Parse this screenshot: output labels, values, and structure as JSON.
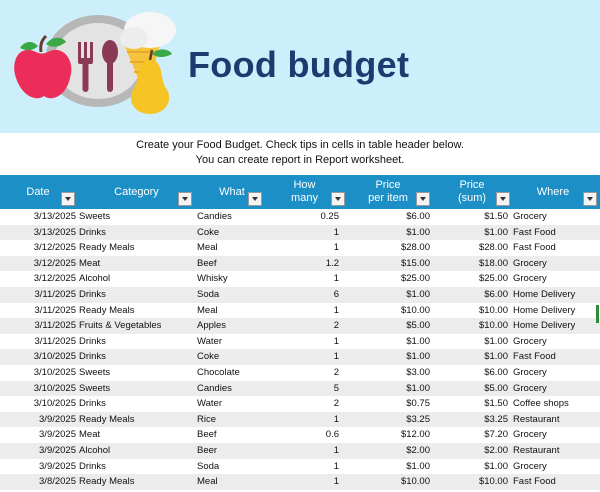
{
  "banner": {
    "title": "Food budget"
  },
  "intro": {
    "line1": "Create your Food Budget. Check tips in cells in table header below.",
    "line2": "You can create report in Report worksheet."
  },
  "table": {
    "headers": {
      "date": "Date",
      "category": "Category",
      "what": "What",
      "how_many_1": "How",
      "how_many_2": "many",
      "price_1": "Price",
      "price_2": "per item",
      "sum_1": "Price",
      "sum_2": "(sum)",
      "where": "Where"
    },
    "rows": [
      {
        "date": "3/13/2025",
        "category": "Sweets",
        "what": "Candies",
        "how_many": "0.25",
        "price": "$6.00",
        "sum": "$1.50",
        "where": "Grocery"
      },
      {
        "date": "3/13/2025",
        "category": "Drinks",
        "what": "Coke",
        "how_many": "1",
        "price": "$1.00",
        "sum": "$1.00",
        "where": "Fast Food"
      },
      {
        "date": "3/12/2025",
        "category": "Ready Meals",
        "what": "Meal",
        "how_many": "1",
        "price": "$28.00",
        "sum": "$28.00",
        "where": "Fast Food"
      },
      {
        "date": "3/12/2025",
        "category": "Meat",
        "what": "Beef",
        "how_many": "1.2",
        "price": "$15.00",
        "sum": "$18.00",
        "where": "Grocery"
      },
      {
        "date": "3/12/2025",
        "category": "Alcohol",
        "what": "Whisky",
        "how_many": "1",
        "price": "$25.00",
        "sum": "$25.00",
        "where": "Grocery"
      },
      {
        "date": "3/11/2025",
        "category": "Drinks",
        "what": "Soda",
        "how_many": "6",
        "price": "$1.00",
        "sum": "$6.00",
        "where": "Home Delivery"
      },
      {
        "date": "3/11/2025",
        "category": "Ready Meals",
        "what": "Meal",
        "how_many": "1",
        "price": "$10.00",
        "sum": "$10.00",
        "where": "Home Delivery"
      },
      {
        "date": "3/11/2025",
        "category": "Fruits & Vegetables",
        "what": "Apples",
        "how_many": "2",
        "price": "$5.00",
        "sum": "$10.00",
        "where": "Home Delivery"
      },
      {
        "date": "3/11/2025",
        "category": "Drinks",
        "what": "Water",
        "how_many": "1",
        "price": "$1.00",
        "sum": "$1.00",
        "where": "Grocery"
      },
      {
        "date": "3/10/2025",
        "category": "Drinks",
        "what": "Coke",
        "how_many": "1",
        "price": "$1.00",
        "sum": "$1.00",
        "where": "Fast Food"
      },
      {
        "date": "3/10/2025",
        "category": "Sweets",
        "what": "Chocolate",
        "how_many": "2",
        "price": "$3.00",
        "sum": "$6.00",
        "where": "Grocery"
      },
      {
        "date": "3/10/2025",
        "category": "Sweets",
        "what": "Candies",
        "how_many": "5",
        "price": "$1.00",
        "sum": "$5.00",
        "where": "Grocery"
      },
      {
        "date": "3/10/2025",
        "category": "Drinks",
        "what": "Water",
        "how_many": "2",
        "price": "$0.75",
        "sum": "$1.50",
        "where": "Coffee shops"
      },
      {
        "date": "3/9/2025",
        "category": "Ready Meals",
        "what": "Rice",
        "how_many": "1",
        "price": "$3.25",
        "sum": "$3.25",
        "where": "Restaurant"
      },
      {
        "date": "3/9/2025",
        "category": "Meat",
        "what": "Beef",
        "how_many": "0.6",
        "price": "$12.00",
        "sum": "$7.20",
        "where": "Grocery"
      },
      {
        "date": "3/9/2025",
        "category": "Alcohol",
        "what": "Beer",
        "how_many": "1",
        "price": "$2.00",
        "sum": "$2.00",
        "where": "Restaurant"
      },
      {
        "date": "3/9/2025",
        "category": "Drinks",
        "what": "Soda",
        "how_many": "1",
        "price": "$1.00",
        "sum": "$1.00",
        "where": "Grocery"
      },
      {
        "date": "3/8/2025",
        "category": "Ready Meals",
        "what": "Meal",
        "how_many": "1",
        "price": "$10.00",
        "sum": "$10.00",
        "where": "Fast Food"
      }
    ]
  },
  "colors": {
    "banner_bg": "#cdeffb",
    "title": "#1f3a6e",
    "header_bg": "#1b8fc6",
    "row_alt": "#ececec"
  },
  "icons": [
    "apple-icon",
    "plate-icon",
    "fork-icon",
    "spoon-icon",
    "ice-cream-icon",
    "pear-icon",
    "filter-dropdown-icon"
  ]
}
